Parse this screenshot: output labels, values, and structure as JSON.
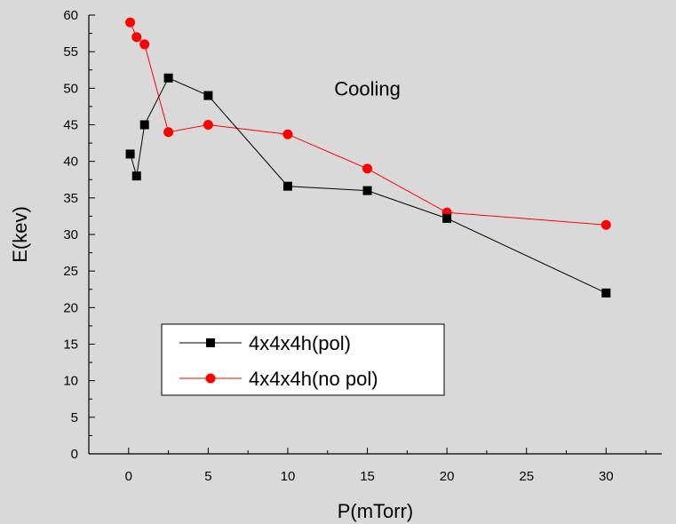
{
  "chart_data": {
    "type": "line",
    "title": "",
    "xlabel": "P(mTorr)",
    "ylabel": "E(kev)",
    "xlim": [
      -2.5,
      33.5
    ],
    "ylim": [
      0,
      60
    ],
    "x_ticks": [
      0,
      5,
      10,
      15,
      20,
      25,
      30
    ],
    "y_ticks": [
      0,
      5,
      10,
      15,
      20,
      25,
      30,
      35,
      40,
      45,
      50,
      55,
      60
    ],
    "x_minor_step": 2.5,
    "y_minor_step": 2.5,
    "grid": false,
    "legend_position": "lower-left",
    "annotations": [
      {
        "text": "Cooling",
        "x": 15,
        "y": 49
      }
    ],
    "series": [
      {
        "name": "4x4x4h(pol)",
        "color": "#000000",
        "marker": "square",
        "x": [
          0.1,
          0.5,
          1,
          2.5,
          5,
          10,
          15,
          20,
          30
        ],
        "y": [
          41,
          38,
          45,
          51.4,
          49,
          36.6,
          36,
          32.2,
          22
        ]
      },
      {
        "name": "4x4x4h(no pol)",
        "color": "#ff0000",
        "marker": "circle",
        "x": [
          0.1,
          0.5,
          1,
          2.5,
          5,
          10,
          15,
          20,
          30
        ],
        "y": [
          59,
          57,
          56,
          44,
          45,
          43.7,
          39,
          33,
          31.3
        ]
      }
    ]
  }
}
